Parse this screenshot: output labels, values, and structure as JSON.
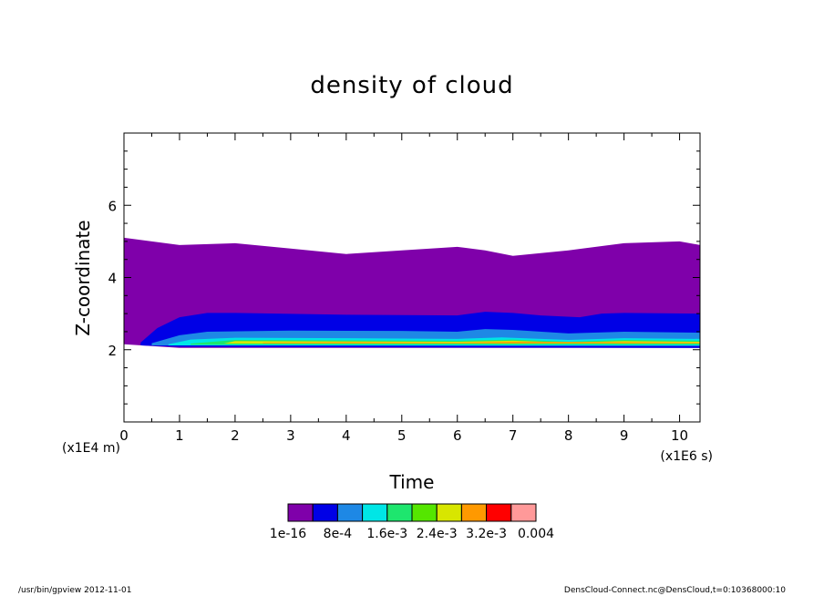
{
  "chart_data": {
    "type": "contour",
    "title": "density of cloud",
    "xlabel": "Time",
    "ylabel": "Z-coordinate",
    "x_unit": "(x1E6 s)",
    "y_unit": "(x1E4 m)",
    "xlim": [
      0,
      10.368
    ],
    "ylim": [
      0,
      8
    ],
    "x_ticks": [
      0,
      1,
      2,
      3,
      4,
      5,
      6,
      7,
      8,
      9,
      10
    ],
    "y_ticks": [
      2,
      4,
      6
    ],
    "x_tick_labels": [
      "0",
      "1",
      "2",
      "3",
      "4",
      "5",
      "6",
      "7",
      "8",
      "9",
      "10"
    ],
    "y_tick_labels": [
      "2",
      "4",
      "6"
    ],
    "levels": [
      1e-16,
      0.0004,
      0.0008,
      0.0012,
      0.0016,
      0.002,
      0.0024,
      0.0028,
      0.0032,
      0.0036,
      0.004
    ],
    "colorbar_colors": [
      "#7f00aa",
      "#0000e6",
      "#1e88e5",
      "#00e6e6",
      "#1ee66e",
      "#55e600",
      "#d8e600",
      "#ff9900",
      "#ff0000",
      "#ff9999"
    ],
    "colorbar_labels": [
      "1e-16",
      "8e-4",
      "1.6e-3",
      "2.4e-3",
      "3.2e-3",
      "0.004"
    ],
    "contour_bands": [
      {
        "level_index": 0,
        "top": [
          [
            0,
            5.1
          ],
          [
            0.5,
            5.0
          ],
          [
            1,
            4.9
          ],
          [
            2,
            4.95
          ],
          [
            3,
            4.8
          ],
          [
            4,
            4.65
          ],
          [
            5,
            4.75
          ],
          [
            6,
            4.85
          ],
          [
            6.5,
            4.75
          ],
          [
            7,
            4.6
          ],
          [
            8,
            4.75
          ],
          [
            9,
            4.95
          ],
          [
            10,
            5.0
          ],
          [
            10.368,
            4.9
          ]
        ],
        "bottom": [
          [
            0,
            2.15
          ],
          [
            0.5,
            2.1
          ],
          [
            1,
            2.05
          ],
          [
            10.368,
            2.05
          ]
        ]
      },
      {
        "level_index": 1,
        "top": [
          [
            0.3,
            2.2
          ],
          [
            0.6,
            2.6
          ],
          [
            1,
            2.9
          ],
          [
            1.5,
            3.02
          ],
          [
            2,
            3.02
          ],
          [
            4,
            2.97
          ],
          [
            6,
            2.95
          ],
          [
            6.5,
            3.05
          ],
          [
            7,
            3.02
          ],
          [
            7.5,
            2.95
          ],
          [
            8.2,
            2.9
          ],
          [
            8.6,
            3.0
          ],
          [
            9,
            3.02
          ],
          [
            10.368,
            3.0
          ]
        ],
        "bottom": [
          [
            0.3,
            2.12
          ],
          [
            1,
            2.08
          ],
          [
            10.368,
            2.05
          ]
        ]
      },
      {
        "level_index": 2,
        "top": [
          [
            0.5,
            2.18
          ],
          [
            1,
            2.4
          ],
          [
            1.5,
            2.5
          ],
          [
            3,
            2.53
          ],
          [
            5,
            2.52
          ],
          [
            6,
            2.5
          ],
          [
            6.5,
            2.57
          ],
          [
            7,
            2.55
          ],
          [
            8,
            2.45
          ],
          [
            9,
            2.5
          ],
          [
            10.368,
            2.47
          ]
        ],
        "bottom": [
          [
            0.5,
            2.12
          ],
          [
            10.368,
            2.1
          ]
        ]
      },
      {
        "level_index": 3,
        "top": [
          [
            0.8,
            2.15
          ],
          [
            1.2,
            2.28
          ],
          [
            2,
            2.33
          ],
          [
            4,
            2.32
          ],
          [
            6,
            2.3
          ],
          [
            6.8,
            2.34
          ],
          [
            8,
            2.27
          ],
          [
            9,
            2.32
          ],
          [
            10.368,
            2.3
          ]
        ],
        "bottom": [
          [
            0.8,
            2.12
          ],
          [
            10.368,
            2.12
          ]
        ]
      },
      {
        "level_index": 4,
        "top": [
          [
            1.2,
            2.17
          ],
          [
            2,
            2.27
          ],
          [
            4,
            2.26
          ],
          [
            6,
            2.25
          ],
          [
            7,
            2.28
          ],
          [
            8,
            2.22
          ],
          [
            9,
            2.27
          ],
          [
            10.368,
            2.25
          ]
        ],
        "bottom": [
          [
            1.2,
            2.14
          ],
          [
            10.368,
            2.14
          ]
        ]
      },
      {
        "level_index": 6,
        "top": [
          [
            1.8,
            2.17
          ],
          [
            2,
            2.24
          ],
          [
            4,
            2.23
          ],
          [
            6,
            2.22
          ],
          [
            7,
            2.25
          ],
          [
            8,
            2.2
          ],
          [
            9,
            2.24
          ],
          [
            10.368,
            2.22
          ]
        ],
        "bottom": [
          [
            1.8,
            2.17
          ],
          [
            10.368,
            2.17
          ]
        ]
      },
      {
        "level_index": 7,
        "top": [
          [
            2.5,
            2.2
          ],
          [
            4,
            2.21
          ],
          [
            6,
            2.2
          ],
          [
            7,
            2.22
          ],
          [
            9,
            2.21
          ],
          [
            10.368,
            2.2
          ]
        ],
        "bottom": [
          [
            2.5,
            2.18
          ],
          [
            10.368,
            2.18
          ]
        ]
      }
    ]
  },
  "footer": {
    "left": "/usr/bin/gpview   2012-11-01",
    "right": "DensCloud-Connect.nc@DensCloud,t=0:10368000:10"
  }
}
